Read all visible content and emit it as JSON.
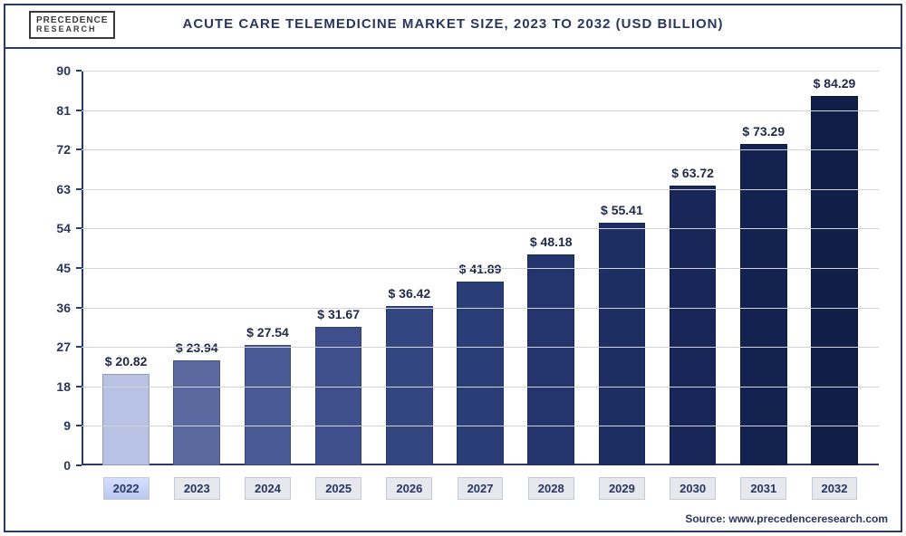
{
  "logo": {
    "line1": "PRECEDENCE",
    "line2": "RESEARCH"
  },
  "chart": {
    "type": "bar",
    "title": "ACUTE CARE TELEMEDICINE MARKET SIZE, 2023 TO 2032 (USD BILLION)",
    "categories": [
      "2022",
      "2023",
      "2024",
      "2025",
      "2026",
      "2027",
      "2028",
      "2029",
      "2030",
      "2031",
      "2032"
    ],
    "values": [
      20.82,
      23.94,
      27.54,
      31.67,
      36.42,
      41.89,
      48.18,
      55.41,
      63.72,
      73.29,
      84.29
    ],
    "value_labels": [
      "$ 20.82",
      "$ 23.94",
      "$ 27.54",
      "$ 31.67",
      "$ 36.42",
      "$ 41.89",
      "$ 48.18",
      "$ 55.41",
      "$ 63.72",
      "$ 73.29",
      "$ 84.29"
    ],
    "bar_colors": [
      "#b7c2e5",
      "#5a6aa0",
      "#4a5a94",
      "#3f4f8c",
      "#344680",
      "#2b3d76",
      "#23356c",
      "#1d2e62",
      "#182758",
      "#14224f",
      "#111e48"
    ],
    "highlight_index": 0,
    "ylim": [
      0,
      90
    ],
    "yticks": [
      0,
      9,
      18,
      27,
      36,
      45,
      54,
      63,
      72,
      81,
      90
    ],
    "ytick_labels": [
      "0",
      "9",
      "18",
      "27",
      "36",
      "45",
      "54",
      "63",
      "72",
      "81",
      "90"
    ],
    "grid_color": "#cfd3db",
    "axis_color": "#2a3a6e",
    "background_color": "#ffffff",
    "title_fontsize": 15,
    "label_fontsize": 14,
    "value_fontsize": 14
  },
  "source": "Source: www.precedenceresearch.com"
}
